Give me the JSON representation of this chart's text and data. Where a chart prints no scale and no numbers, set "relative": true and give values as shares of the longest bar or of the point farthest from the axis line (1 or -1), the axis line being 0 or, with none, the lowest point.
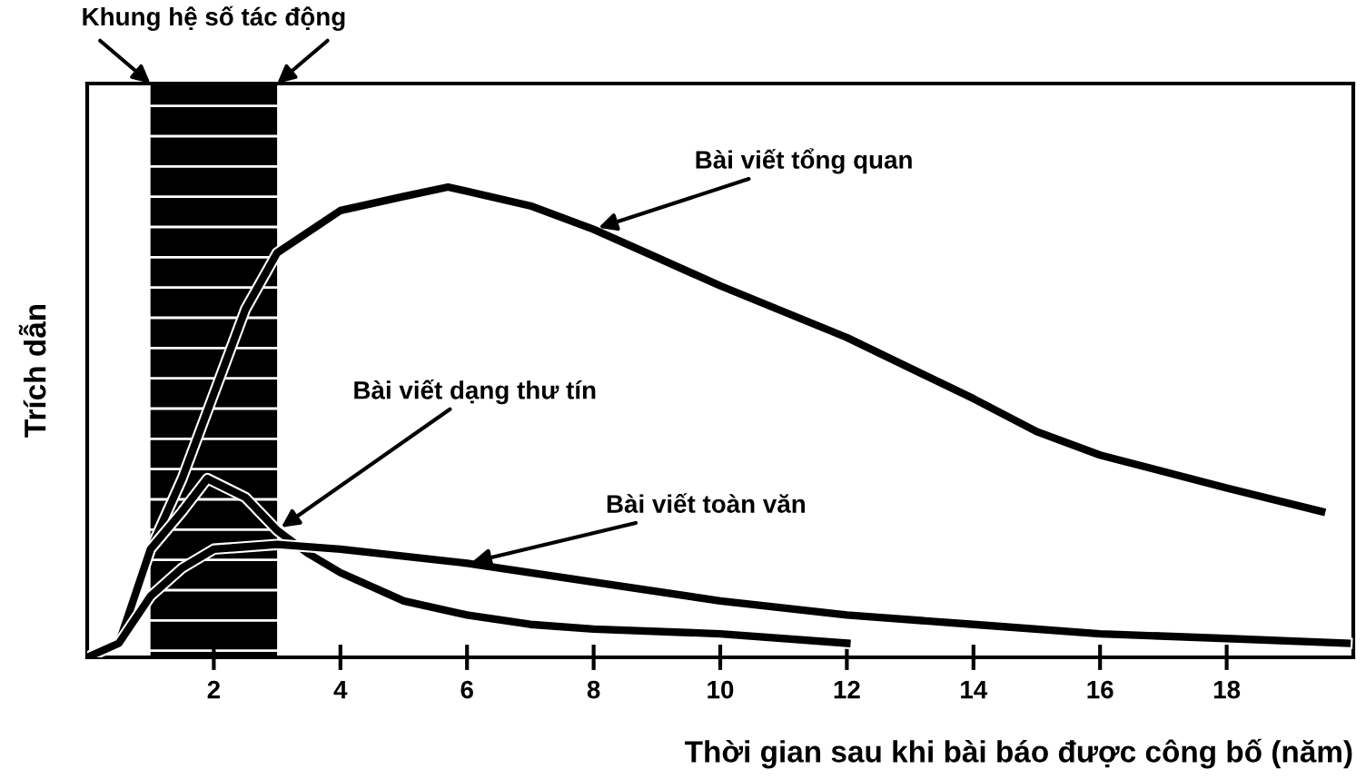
{
  "chart_data": {
    "type": "line",
    "relative": true,
    "xlabel": "Thời gian sau khi bài báo được công bố (năm)",
    "ylabel": "Trích dẫn",
    "xlim": [
      0,
      20
    ],
    "xticks": [
      2,
      4,
      6,
      8,
      10,
      12,
      14,
      16,
      18
    ],
    "grid": false,
    "legend": false,
    "marker": "none",
    "line_style": "solid",
    "bands": [
      {
        "axis": "x",
        "from": 1,
        "to": 3,
        "label": "Khung hệ số tác động",
        "color": "#000000"
      }
    ],
    "series": [
      {
        "name": "Bài viết tổng quan",
        "color": "#000000",
        "x": [
          0,
          0.5,
          1,
          1.5,
          2,
          2.5,
          3,
          4,
          5,
          5.7,
          7,
          8,
          9,
          10,
          12,
          14,
          15,
          16,
          18,
          19.5
        ],
        "values": [
          0,
          0.03,
          0.23,
          0.38,
          0.56,
          0.74,
          0.86,
          0.95,
          0.98,
          1.0,
          0.96,
          0.91,
          0.85,
          0.79,
          0.68,
          0.55,
          0.48,
          0.43,
          0.36,
          0.31
        ]
      },
      {
        "name": "Bài viết dạng thư tín",
        "color": "#000000",
        "x": [
          0,
          0.5,
          1,
          1.5,
          1.9,
          2.5,
          3,
          3.5,
          4,
          5,
          6,
          7,
          8,
          10,
          12
        ],
        "values": [
          0,
          0.03,
          0.23,
          0.31,
          0.38,
          0.34,
          0.27,
          0.22,
          0.18,
          0.12,
          0.09,
          0.07,
          0.06,
          0.05,
          0.03
        ]
      },
      {
        "name": "Bài viết toàn văn",
        "color": "#000000",
        "x": [
          0,
          0.5,
          1,
          1.5,
          2,
          3,
          4,
          6,
          8,
          10,
          12,
          14,
          16,
          18,
          19.9
        ],
        "values": [
          0,
          0.03,
          0.13,
          0.19,
          0.23,
          0.24,
          0.23,
          0.2,
          0.16,
          0.12,
          0.09,
          0.07,
          0.05,
          0.04,
          0.03
        ]
      }
    ]
  }
}
